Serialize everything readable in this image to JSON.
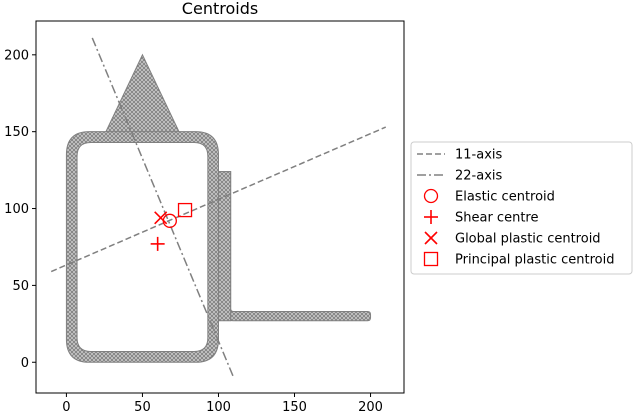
{
  "chart_data": {
    "type": "scatter",
    "title": "Centroids",
    "xlabel": "",
    "ylabel": "",
    "xlim": [
      -20,
      222
    ],
    "ylim": [
      -20,
      222
    ],
    "xticks": [
      0,
      50,
      100,
      150,
      200
    ],
    "yticks": [
      0,
      50,
      100,
      150,
      200
    ],
    "grid": false,
    "legend_position": "right",
    "mesh_color": "#808080",
    "series": [
      {
        "name": "11-axis",
        "kind": "line",
        "style": "dashed",
        "color": "#808080",
        "x": [
          -10,
          210
        ],
        "y": [
          59,
          153
        ]
      },
      {
        "name": "22-axis",
        "kind": "line",
        "style": "dashdot",
        "color": "#808080",
        "x": [
          17,
          110
        ],
        "y": [
          211,
          -10
        ]
      },
      {
        "name": "Elastic centroid",
        "kind": "marker",
        "marker": "circle",
        "color": "#ff0000",
        "x": [
          68
        ],
        "y": [
          92
        ]
      },
      {
        "name": "Shear centre",
        "kind": "marker",
        "marker": "plus",
        "color": "#ff0000",
        "x": [
          60
        ],
        "y": [
          77
        ]
      },
      {
        "name": "Global plastic centroid",
        "kind": "marker",
        "marker": "x",
        "color": "#ff0000",
        "x": [
          62
        ],
        "y": [
          94
        ]
      },
      {
        "name": "Principal plastic centroid",
        "kind": "marker",
        "marker": "square",
        "color": "#ff0000",
        "x": [
          78
        ],
        "y": [
          99
        ]
      }
    ]
  }
}
